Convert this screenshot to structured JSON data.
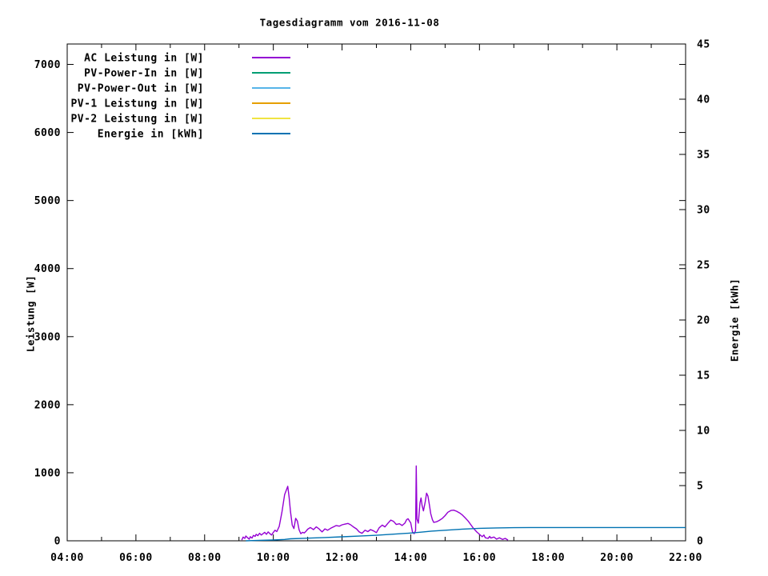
{
  "chart_data": {
    "type": "line",
    "title": "Tagesdiagramm vom 2016-11-08",
    "ylabel_left": "Leistung [W]",
    "ylabel_right": "Energie [kWh]",
    "grid": false,
    "legend_position": "inside-top-left",
    "xlim_hours": [
      4,
      22
    ],
    "ylim_left": [
      0,
      7300
    ],
    "ylim_right": [
      0,
      45
    ],
    "xticks_major": [
      {
        "h": 4,
        "label": "04:00"
      },
      {
        "h": 6,
        "label": "06:00"
      },
      {
        "h": 8,
        "label": "08:00"
      },
      {
        "h": 10,
        "label": "10:00"
      },
      {
        "h": 12,
        "label": "12:00"
      },
      {
        "h": 14,
        "label": "14:00"
      },
      {
        "h": 16,
        "label": "16:00"
      },
      {
        "h": 18,
        "label": "18:00"
      },
      {
        "h": 20,
        "label": "20:00"
      },
      {
        "h": 22,
        "label": "22:00"
      }
    ],
    "xticks_minor_h": [
      5,
      7,
      9,
      11,
      13,
      15,
      17,
      19,
      21
    ],
    "yticks_left": [
      {
        "v": 0,
        "label": "0"
      },
      {
        "v": 1000,
        "label": "1000"
      },
      {
        "v": 2000,
        "label": "2000"
      },
      {
        "v": 3000,
        "label": "3000"
      },
      {
        "v": 4000,
        "label": "4000"
      },
      {
        "v": 5000,
        "label": "5000"
      },
      {
        "v": 6000,
        "label": "6000"
      },
      {
        "v": 7000,
        "label": "7000"
      }
    ],
    "yticks_right": [
      {
        "v": 0,
        "label": "0"
      },
      {
        "v": 5,
        "label": "5"
      },
      {
        "v": 10,
        "label": "10"
      },
      {
        "v": 15,
        "label": "15"
      },
      {
        "v": 20,
        "label": "20"
      },
      {
        "v": 25,
        "label": "25"
      },
      {
        "v": 30,
        "label": "30"
      },
      {
        "v": 35,
        "label": "35"
      },
      {
        "v": 40,
        "label": "40"
      },
      {
        "v": 45,
        "label": "45"
      }
    ],
    "series": [
      {
        "name": "AC Leistung in [W]",
        "color": "#9400d3",
        "axis": "left",
        "points": [
          [
            9.08,
            10
          ],
          [
            9.12,
            55
          ],
          [
            9.17,
            35
          ],
          [
            9.2,
            70
          ],
          [
            9.25,
            45
          ],
          [
            9.3,
            25
          ],
          [
            9.33,
            60
          ],
          [
            9.38,
            40
          ],
          [
            9.42,
            80
          ],
          [
            9.47,
            65
          ],
          [
            9.5,
            95
          ],
          [
            9.55,
            75
          ],
          [
            9.6,
            110
          ],
          [
            9.65,
            85
          ],
          [
            9.7,
            105
          ],
          [
            9.75,
            125
          ],
          [
            9.8,
            95
          ],
          [
            9.85,
            130
          ],
          [
            9.9,
            105
          ],
          [
            9.95,
            85
          ],
          [
            10.0,
            125
          ],
          [
            10.05,
            155
          ],
          [
            10.1,
            135
          ],
          [
            10.17,
            210
          ],
          [
            10.25,
            420
          ],
          [
            10.33,
            680
          ],
          [
            10.42,
            800
          ],
          [
            10.46,
            640
          ],
          [
            10.5,
            430
          ],
          [
            10.55,
            230
          ],
          [
            10.6,
            180
          ],
          [
            10.65,
            330
          ],
          [
            10.7,
            290
          ],
          [
            10.75,
            160
          ],
          [
            10.8,
            105
          ],
          [
            10.85,
            125
          ],
          [
            10.9,
            115
          ],
          [
            10.95,
            140
          ],
          [
            11.0,
            170
          ],
          [
            11.08,
            195
          ],
          [
            11.17,
            165
          ],
          [
            11.25,
            205
          ],
          [
            11.33,
            175
          ],
          [
            11.42,
            130
          ],
          [
            11.5,
            175
          ],
          [
            11.58,
            155
          ],
          [
            11.67,
            185
          ],
          [
            11.75,
            205
          ],
          [
            11.83,
            225
          ],
          [
            11.92,
            215
          ],
          [
            12.0,
            235
          ],
          [
            12.08,
            245
          ],
          [
            12.17,
            255
          ],
          [
            12.25,
            235
          ],
          [
            12.33,
            205
          ],
          [
            12.42,
            175
          ],
          [
            12.5,
            130
          ],
          [
            12.58,
            110
          ],
          [
            12.67,
            155
          ],
          [
            12.75,
            135
          ],
          [
            12.83,
            165
          ],
          [
            12.92,
            145
          ],
          [
            13.0,
            120
          ],
          [
            13.08,
            190
          ],
          [
            13.17,
            230
          ],
          [
            13.25,
            205
          ],
          [
            13.33,
            255
          ],
          [
            13.42,
            305
          ],
          [
            13.5,
            285
          ],
          [
            13.58,
            240
          ],
          [
            13.67,
            250
          ],
          [
            13.75,
            225
          ],
          [
            13.83,
            260
          ],
          [
            13.88,
            310
          ],
          [
            13.92,
            325
          ],
          [
            13.97,
            285
          ],
          [
            14.0,
            265
          ],
          [
            14.05,
            130
          ],
          [
            14.1,
            105
          ],
          [
            14.14,
            150
          ],
          [
            14.16,
            1100
          ],
          [
            14.18,
            320
          ],
          [
            14.22,
            260
          ],
          [
            14.27,
            560
          ],
          [
            14.3,
            630
          ],
          [
            14.33,
            520
          ],
          [
            14.37,
            440
          ],
          [
            14.42,
            570
          ],
          [
            14.46,
            700
          ],
          [
            14.5,
            660
          ],
          [
            14.54,
            540
          ],
          [
            14.58,
            400
          ],
          [
            14.63,
            310
          ],
          [
            14.67,
            270
          ],
          [
            14.75,
            280
          ],
          [
            14.83,
            300
          ],
          [
            14.92,
            330
          ],
          [
            15.0,
            370
          ],
          [
            15.08,
            420
          ],
          [
            15.17,
            445
          ],
          [
            15.25,
            450
          ],
          [
            15.33,
            435
          ],
          [
            15.42,
            410
          ],
          [
            15.5,
            380
          ],
          [
            15.58,
            340
          ],
          [
            15.67,
            290
          ],
          [
            15.75,
            235
          ],
          [
            15.83,
            180
          ],
          [
            15.92,
            130
          ],
          [
            16.0,
            95
          ],
          [
            16.08,
            60
          ],
          [
            16.13,
            85
          ],
          [
            16.17,
            45
          ],
          [
            16.25,
            35
          ],
          [
            16.3,
            65
          ],
          [
            16.33,
            40
          ],
          [
            16.42,
            55
          ],
          [
            16.5,
            25
          ],
          [
            16.58,
            45
          ],
          [
            16.67,
            20
          ],
          [
            16.75,
            35
          ],
          [
            16.83,
            10
          ]
        ]
      },
      {
        "name": "PV-Power-In in [W]",
        "color": "#009e73",
        "axis": "left",
        "points": []
      },
      {
        "name": "PV-Power-Out in [W]",
        "color": "#56b4e9",
        "axis": "left",
        "points": []
      },
      {
        "name": "PV-1 Leistung in [W]",
        "color": "#e69f00",
        "axis": "left",
        "points": []
      },
      {
        "name": "PV-2 Leistung in [W]",
        "color": "#f0e442",
        "axis": "left",
        "points": []
      },
      {
        "name": "Energie in [kWh]",
        "color": "#0072b2",
        "axis": "right",
        "points": [
          [
            9.2,
            0
          ],
          [
            9.5,
            0.03
          ],
          [
            10.0,
            0.07
          ],
          [
            10.33,
            0.12
          ],
          [
            10.5,
            0.18
          ],
          [
            11.0,
            0.24
          ],
          [
            11.5,
            0.3
          ],
          [
            12.0,
            0.36
          ],
          [
            12.5,
            0.43
          ],
          [
            13.0,
            0.5
          ],
          [
            13.5,
            0.6
          ],
          [
            14.0,
            0.7
          ],
          [
            14.3,
            0.78
          ],
          [
            14.6,
            0.88
          ],
          [
            15.0,
            0.96
          ],
          [
            15.5,
            1.06
          ],
          [
            16.0,
            1.13
          ],
          [
            16.5,
            1.17
          ],
          [
            17.0,
            1.19
          ],
          [
            17.5,
            1.2
          ],
          [
            22.0,
            1.2
          ]
        ]
      }
    ]
  }
}
